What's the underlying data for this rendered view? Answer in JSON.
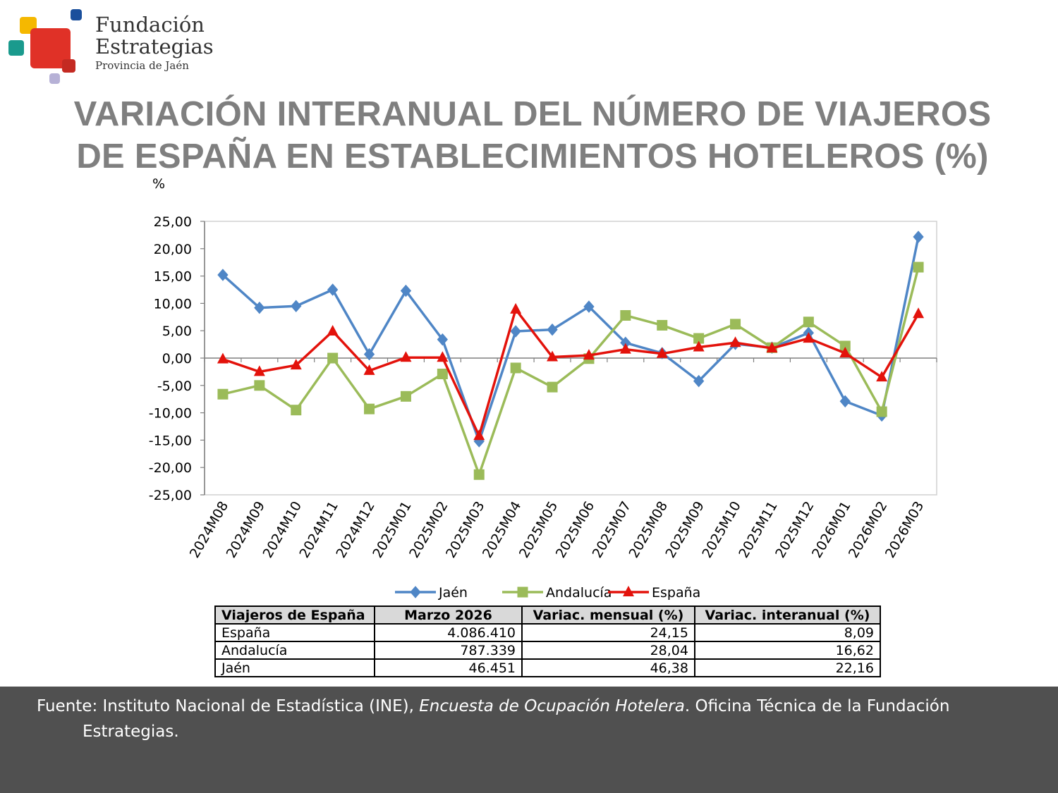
{
  "logo": {
    "line1": "Fundación",
    "line2": "Estrategias",
    "line3": "Provincia de Jaén"
  },
  "title_line1": "VARIACIÓN INTERANUAL DEL NÚMERO DE VIAJEROS",
  "title_line2": "DE ESPAÑA EN ESTABLECIMIENTOS HOTELEROS (%)",
  "chart_data": {
    "type": "line",
    "title": "",
    "ylabel": "%",
    "xlabel": "",
    "ylim": [
      -25,
      25
    ],
    "ytick_step": 5,
    "grid": false,
    "legend_position": "bottom",
    "categories": [
      "2024M08",
      "2024M09",
      "2024M10",
      "2024M11",
      "2024M12",
      "2025M01",
      "2025M02",
      "2025M03",
      "2025M04",
      "2025M05",
      "2025M06",
      "2025M07",
      "2025M08",
      "2025M09",
      "2025M10",
      "2025M11",
      "2025M12",
      "2026M01",
      "2026M02",
      "2026M03"
    ],
    "series": [
      {
        "name": "Jaén",
        "color": "#4f86c6",
        "marker": "diamond",
        "values": [
          15.2,
          9.2,
          9.5,
          12.5,
          0.7,
          12.3,
          3.4,
          -15.2,
          4.9,
          5.2,
          9.4,
          2.8,
          0.9,
          -4.2,
          2.6,
          1.9,
          4.6,
          -7.9,
          -10.5,
          22.16
        ]
      },
      {
        "name": "Andalucía",
        "color": "#9bbb59",
        "marker": "square",
        "values": [
          -6.6,
          -5.0,
          -9.5,
          0.0,
          -9.3,
          -7.0,
          -2.9,
          -21.3,
          -1.8,
          -5.3,
          -0.1,
          7.8,
          6.0,
          3.6,
          6.2,
          1.9,
          6.6,
          2.2,
          -9.8,
          16.62
        ]
      },
      {
        "name": "España",
        "color": "#e3120b",
        "marker": "triangle",
        "values": [
          -0.2,
          -2.5,
          -1.3,
          4.9,
          -2.3,
          0.1,
          0.1,
          -14.2,
          8.9,
          0.2,
          0.5,
          1.6,
          0.8,
          2.0,
          2.8,
          1.8,
          3.6,
          0.9,
          -3.5,
          8.09
        ]
      }
    ]
  },
  "table": {
    "headers": [
      "Viajeros de España",
      "Marzo 2026",
      "Variac. mensual (%)",
      "Variac. interanual (%)"
    ],
    "rows": [
      [
        "España",
        "4.086.410",
        "24,15",
        "8,09"
      ],
      [
        "Andalucía",
        "787.339",
        "28,04",
        "16,62"
      ],
      [
        "Jaén",
        "46.451",
        "46,38",
        "22,16"
      ]
    ]
  },
  "footer": {
    "prefix": "Fuente: Instituto Nacional de Estadística (INE), ",
    "italic": "Encuesta de Ocupación Hotelera",
    "suffix": ". Oficina Técnica de la Fundación",
    "continuation": "Estrategias."
  },
  "colors": {
    "title": "#7f7f7f",
    "footer_bg": "#505050",
    "logo_yellow": "#f5b800",
    "logo_red": "#e03127",
    "logo_teal": "#1a9a8d",
    "logo_blue": "#1a4f9c",
    "logo_lilac": "#b6b1d6"
  }
}
